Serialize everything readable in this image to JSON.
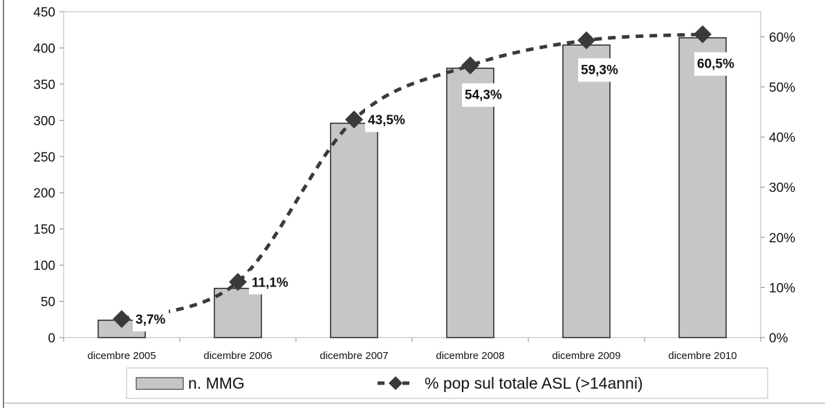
{
  "colors": {
    "bar_fill": "#c6c6c6",
    "bar_stroke": "#222222",
    "line": "#3a3a3a",
    "marker": "#3a3a3a",
    "frame": "#9a9a9a",
    "plot_border": "#b5b5b5"
  },
  "chart_data": {
    "type": "bar",
    "title": "",
    "categories": [
      "dicembre 2005",
      "dicembre 2006",
      "dicembre 2007",
      "dicembre 2008",
      "dicembre 2009",
      "dicembre 2010"
    ],
    "series": [
      {
        "name": "n. MMG",
        "type": "bar",
        "axis": "left",
        "values": [
          24,
          68,
          296,
          372,
          404,
          414
        ]
      },
      {
        "name": "% pop sul totale ASL (>14anni)",
        "type": "line",
        "axis": "right",
        "style": "dashed",
        "marker": "diamond",
        "values": [
          3.7,
          11.1,
          43.5,
          54.3,
          59.3,
          60.5
        ],
        "labels": [
          "3,7%",
          "11,1%",
          "43,5%",
          "54,3%",
          "59,3%",
          "60,5%"
        ]
      }
    ],
    "y_left": {
      "ylim": [
        0,
        450
      ],
      "ticks": [
        0,
        50,
        100,
        150,
        200,
        250,
        300,
        350,
        400,
        450
      ],
      "tick_labels": [
        "0",
        "50",
        "100",
        "150",
        "200",
        "250",
        "300",
        "350",
        "400",
        "450"
      ]
    },
    "y_right": {
      "ylim": [
        0,
        65
      ],
      "ticks": [
        0,
        10,
        20,
        30,
        40,
        50,
        60
      ],
      "tick_labels": [
        "0%",
        "10%",
        "20%",
        "30%",
        "40%",
        "50%",
        "60%"
      ]
    },
    "grid": false,
    "legend": {
      "position": "bottom",
      "entries": [
        "n. MMG",
        "% pop sul totale ASL (>14anni)"
      ]
    }
  }
}
